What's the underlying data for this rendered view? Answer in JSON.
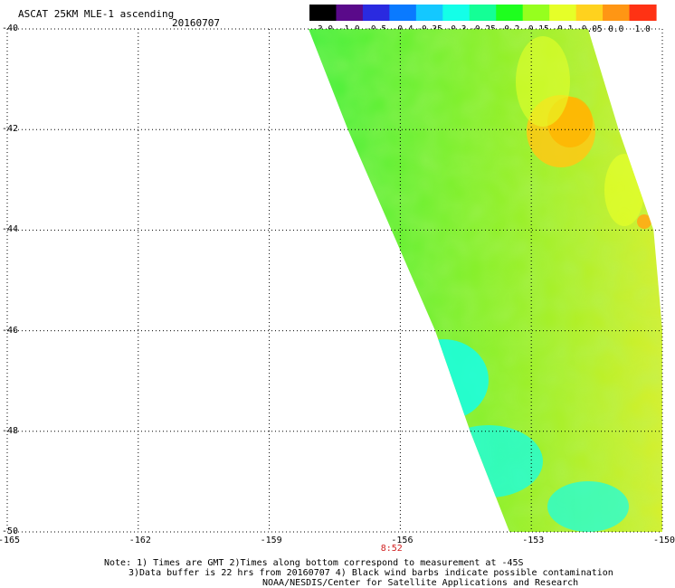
{
  "header": {
    "title": "ASCAT 25KM MLE-1 ascending",
    "date": "20160707"
  },
  "colorbar": {
    "labels": [
      "-3.0",
      "-1.0",
      "-0.5",
      "-0.4",
      "-0.35",
      "-0.3",
      "-0.25",
      "-0.2",
      "-0.15",
      "-0.1",
      "-0.05",
      "0.0",
      "1.0"
    ],
    "colors": [
      "#000000",
      "#5a0a8a",
      "#2a2ae0",
      "#0a7aff",
      "#14c8ff",
      "#14ffe8",
      "#14ff96",
      "#1eff1e",
      "#96ff1e",
      "#e6ff28",
      "#ffd21e",
      "#ff9614",
      "#ff3214"
    ]
  },
  "axes": {
    "x_ticks": [
      "-165",
      "-162",
      "-159",
      "-156",
      "-153",
      "-150"
    ],
    "y_ticks": [
      "-40",
      "-42",
      "-44",
      "-46",
      "-48",
      "-50"
    ],
    "lon_range": [
      -165,
      -150
    ],
    "lat_range": [
      -50,
      -40
    ]
  },
  "time_marks": [
    {
      "label": "8:52",
      "lon": -156.2
    }
  ],
  "notes": {
    "line1": "Note: 1) Times are GMT 2)Times along bottom correspond to measurement at -45S",
    "line2": "3)Data buffer is 22 hrs from 20160707 4) Black wind barbs indicate possible contamination",
    "line3": "NOAA/NESDIS/Center for Satellite Applications and Research"
  },
  "swath": {
    "west_edge": [
      [
        -158.1,
        -40
      ],
      [
        -157.2,
        -42
      ],
      [
        -156.2,
        -44
      ],
      [
        -155.2,
        -46
      ],
      [
        -154.4,
        -48
      ],
      [
        -153.5,
        -50
      ]
    ],
    "east_edge": [
      [
        -151.7,
        -40
      ],
      [
        -151.0,
        -42
      ],
      [
        -150.2,
        -44
      ],
      [
        -150.0,
        -46
      ],
      [
        -150.0,
        -48
      ],
      [
        -150.0,
        -50
      ]
    ]
  }
}
